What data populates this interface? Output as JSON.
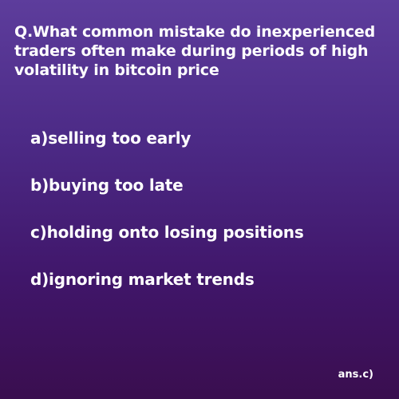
{
  "question": "Q.What common mistake do inexperienced traders often make during periods of high volatility in bitcoin price",
  "options": [
    "a)selling too early",
    "b)buying too late",
    "c)holding onto losing positions",
    "d)ignoring market trends"
  ],
  "answer": "ans.c)",
  "colors": {
    "background_top": "#5d3d9c",
    "background_bottom": "#3a0e4f",
    "text": "#ffffff"
  }
}
